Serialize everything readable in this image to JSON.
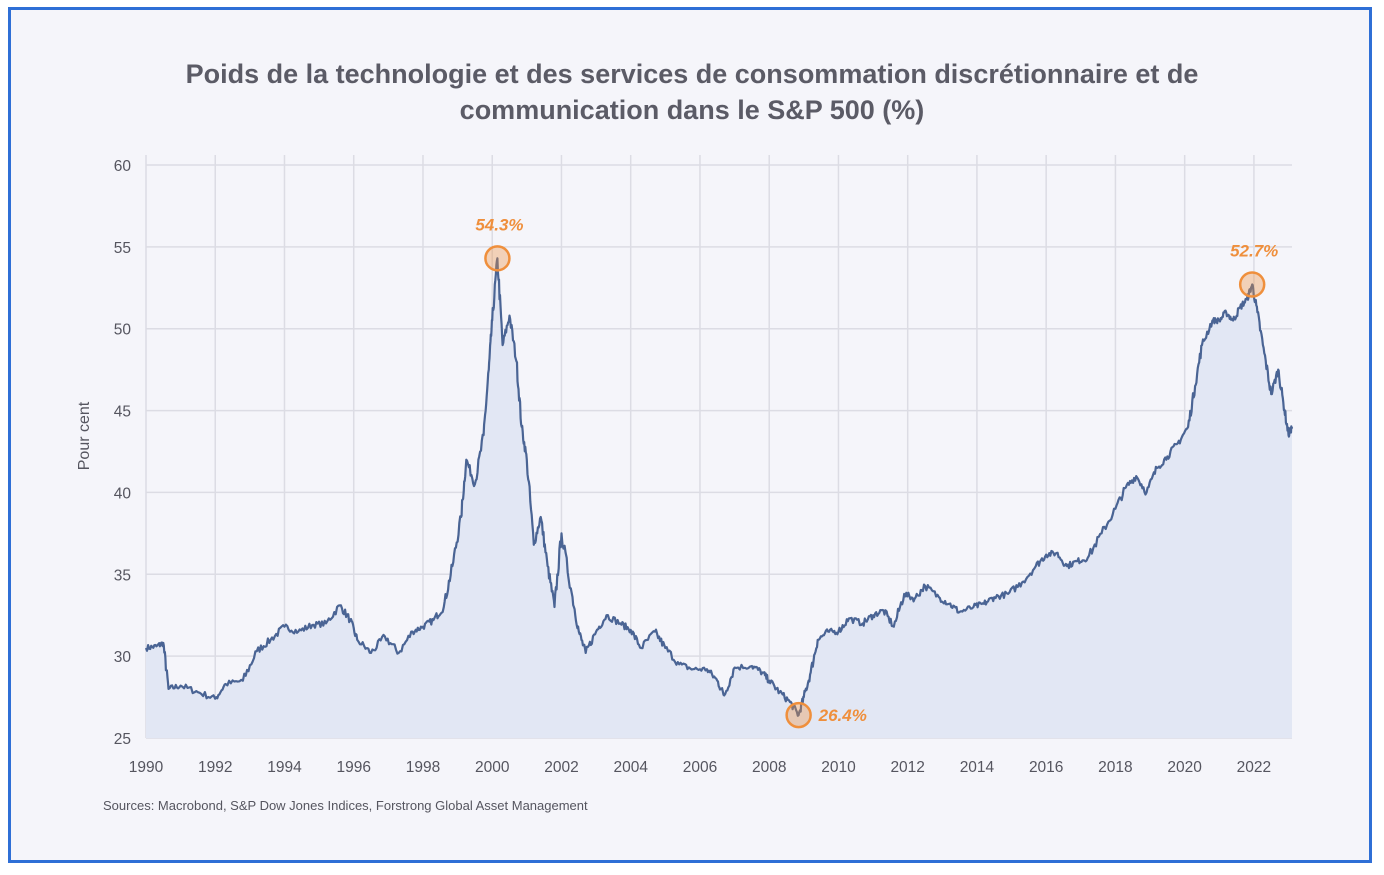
{
  "chart_data": {
    "type": "area",
    "title_lines": [
      "Poids de la technologie et des services de consommation discrétionnaire et de",
      "communication dans le S&P 500 (%)"
    ],
    "xlabel": "",
    "ylabel": "Pour cent",
    "xlim": [
      1990,
      2023.1
    ],
    "ylim": [
      25,
      60
    ],
    "x_ticks": [
      "1990",
      "1992",
      "1994",
      "1996",
      "1998",
      "2000",
      "2002",
      "2004",
      "2006",
      "2008",
      "2010",
      "2012",
      "2014",
      "2016",
      "2018",
      "2020",
      "2022"
    ],
    "y_ticks": [
      "60",
      "55",
      "50",
      "45",
      "40",
      "35",
      "30",
      "25"
    ],
    "grid": true,
    "series": [
      {
        "points": [
          [
            1990.0,
            30.5
          ],
          [
            1990.3,
            30.6
          ],
          [
            1990.5,
            30.8
          ],
          [
            1990.65,
            28.0
          ],
          [
            1991.0,
            28.2
          ],
          [
            1991.5,
            27.8
          ],
          [
            1992.0,
            27.4
          ],
          [
            1992.3,
            28.3
          ],
          [
            1992.8,
            28.5
          ],
          [
            1993.2,
            30.3
          ],
          [
            1993.6,
            31.0
          ],
          [
            1994.0,
            31.8
          ],
          [
            1994.4,
            31.5
          ],
          [
            1994.8,
            31.9
          ],
          [
            1995.2,
            32.0
          ],
          [
            1995.6,
            33.1
          ],
          [
            1995.9,
            32.2
          ],
          [
            1996.1,
            31.0
          ],
          [
            1996.5,
            30.2
          ],
          [
            1996.9,
            31.2
          ],
          [
            1997.3,
            30.2
          ],
          [
            1997.7,
            31.5
          ],
          [
            1998.0,
            31.8
          ],
          [
            1998.3,
            32.2
          ],
          [
            1998.6,
            33.0
          ],
          [
            1998.85,
            35.5
          ],
          [
            1999.1,
            38.5
          ],
          [
            1999.25,
            42.0
          ],
          [
            1999.5,
            40.5
          ],
          [
            1999.75,
            43.5
          ],
          [
            1999.9,
            47.5
          ],
          [
            2000.0,
            50.5
          ],
          [
            2000.15,
            54.3
          ],
          [
            2000.3,
            49.0
          ],
          [
            2000.5,
            50.8
          ],
          [
            2000.7,
            48.0
          ],
          [
            2000.85,
            44.0
          ],
          [
            2001.0,
            42.0
          ],
          [
            2001.2,
            36.8
          ],
          [
            2001.4,
            38.5
          ],
          [
            2001.6,
            35.5
          ],
          [
            2001.8,
            33.0
          ],
          [
            2002.0,
            37.5
          ],
          [
            2002.3,
            33.8
          ],
          [
            2002.5,
            31.5
          ],
          [
            2002.7,
            30.2
          ],
          [
            2003.0,
            31.5
          ],
          [
            2003.3,
            32.5
          ],
          [
            2003.7,
            32.0
          ],
          [
            2004.0,
            31.6
          ],
          [
            2004.3,
            30.5
          ],
          [
            2004.7,
            31.5
          ],
          [
            2005.0,
            30.5
          ],
          [
            2005.4,
            29.5
          ],
          [
            2005.8,
            29.2
          ],
          [
            2006.2,
            29.2
          ],
          [
            2006.5,
            28.5
          ],
          [
            2006.7,
            27.6
          ],
          [
            2007.0,
            29.3
          ],
          [
            2007.5,
            29.4
          ],
          [
            2007.8,
            29.0
          ],
          [
            2008.0,
            28.5
          ],
          [
            2008.3,
            27.8
          ],
          [
            2008.6,
            27.2
          ],
          [
            2008.85,
            26.4
          ],
          [
            2009.0,
            27.5
          ],
          [
            2009.2,
            29.0
          ],
          [
            2009.4,
            31.0
          ],
          [
            2009.7,
            31.5
          ],
          [
            2010.0,
            31.5
          ],
          [
            2010.3,
            32.3
          ],
          [
            2010.7,
            32.0
          ],
          [
            2011.0,
            32.5
          ],
          [
            2011.3,
            32.8
          ],
          [
            2011.6,
            31.8
          ],
          [
            2011.9,
            33.8
          ],
          [
            2012.2,
            33.5
          ],
          [
            2012.5,
            34.3
          ],
          [
            2012.9,
            33.6
          ],
          [
            2013.2,
            33.2
          ],
          [
            2013.5,
            32.7
          ],
          [
            2013.9,
            33.0
          ],
          [
            2014.2,
            33.2
          ],
          [
            2014.5,
            33.6
          ],
          [
            2014.9,
            33.8
          ],
          [
            2015.3,
            34.5
          ],
          [
            2015.7,
            35.5
          ],
          [
            2016.0,
            36.2
          ],
          [
            2016.3,
            36.3
          ],
          [
            2016.6,
            35.5
          ],
          [
            2016.9,
            35.8
          ],
          [
            2017.2,
            36.0
          ],
          [
            2017.6,
            37.5
          ],
          [
            2018.0,
            39.0
          ],
          [
            2018.3,
            40.3
          ],
          [
            2018.6,
            41.0
          ],
          [
            2018.9,
            40.0
          ],
          [
            2019.2,
            41.5
          ],
          [
            2019.5,
            42.2
          ],
          [
            2019.8,
            43.0
          ],
          [
            2020.1,
            44.0
          ],
          [
            2020.3,
            46.5
          ],
          [
            2020.5,
            49.0
          ],
          [
            2020.8,
            50.5
          ],
          [
            2021.0,
            50.5
          ],
          [
            2021.2,
            51.0
          ],
          [
            2021.4,
            50.5
          ],
          [
            2021.6,
            51.3
          ],
          [
            2021.8,
            51.8
          ],
          [
            2021.95,
            52.7
          ],
          [
            2022.1,
            51.0
          ],
          [
            2022.3,
            48.5
          ],
          [
            2022.5,
            46.0
          ],
          [
            2022.7,
            47.5
          ],
          [
            2022.85,
            45.5
          ],
          [
            2023.0,
            43.5
          ],
          [
            2023.1,
            44.0
          ]
        ]
      }
    ],
    "annotations": [
      {
        "label": "54.3%",
        "x": 2000.15,
        "y": 54.3,
        "position": "above"
      },
      {
        "label": "26.4%",
        "x": 2008.85,
        "y": 26.4,
        "position": "right"
      },
      {
        "label": "52.7%",
        "x": 2021.95,
        "y": 52.7,
        "position": "above"
      }
    ],
    "colors": {
      "line": "#4a6494",
      "fill": "#e2e7f4",
      "marker": "#ef8f3c",
      "grid": "#dcdce4"
    },
    "source": "Sources: Macrobond, S&P Dow Jones Indices, Forstrong Global Asset Management"
  }
}
